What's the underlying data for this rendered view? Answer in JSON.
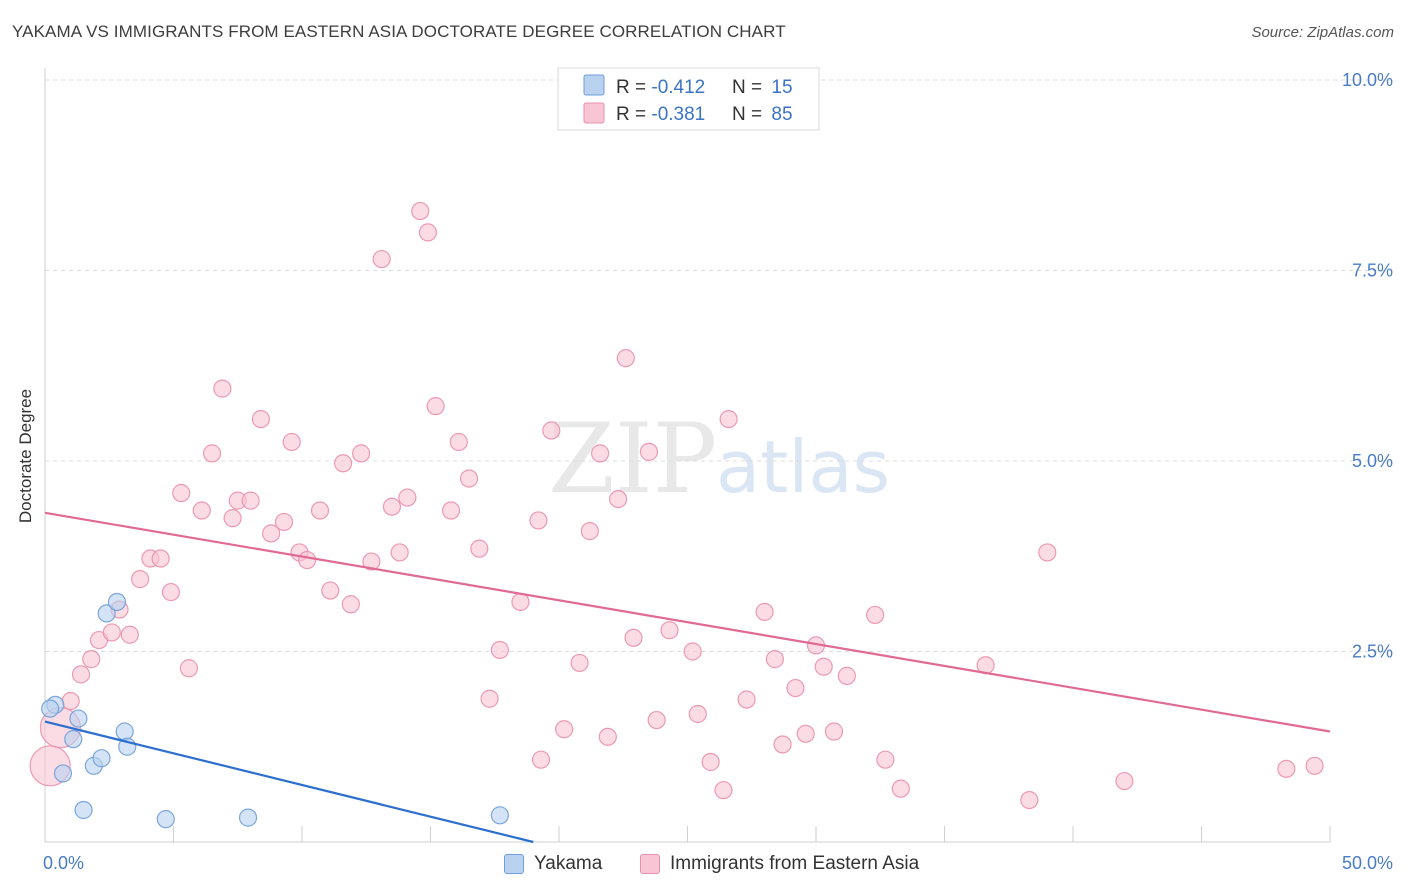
{
  "title": "YAKAMA VS IMMIGRANTS FROM EASTERN ASIA DOCTORATE DEGREE CORRELATION CHART",
  "source": "Source: ZipAtlas.com",
  "watermark": {
    "zip": "ZIP",
    "atlas": "atlas"
  },
  "colors": {
    "yakama_fill": "#b8d2f0",
    "yakama_stroke": "#6f9fd8",
    "yakama_line": "#2d6fcf",
    "eastasia_fill": "#f8c5d4",
    "eastasia_stroke": "#ea90ad",
    "eastasia_line": "#e06a93",
    "value_text": "#3b73c6",
    "grid": "#dcdcdc"
  },
  "legend": {
    "rows": [
      {
        "r_label": "R = ",
        "r_value": "-0.412",
        "n_label": "N = ",
        "n_value": "15"
      },
      {
        "r_label": "R = ",
        "r_value": "-0.381",
        "n_label": "N = ",
        "n_value": "85"
      }
    ]
  },
  "bottom_legend": {
    "yakama": "Yakama",
    "eastasia": "Immigrants from Eastern Asia"
  },
  "chart_data": {
    "type": "scatter",
    "title": "YAKAMA VS IMMIGRANTS FROM EASTERN ASIA DOCTORATE DEGREE CORRELATION CHART",
    "xlabel": "",
    "ylabel": "Doctorate Degree",
    "xlim": [
      0,
      50
    ],
    "ylim": [
      0,
      10
    ],
    "x_tick_labels": [
      "0.0%",
      "50.0%"
    ],
    "y_ticks": [
      2.5,
      5.0,
      7.5,
      10.0
    ],
    "y_tick_labels": [
      "2.5%",
      "5.0%",
      "7.5%",
      "10.0%"
    ],
    "grid": true,
    "legend_position": "top-center",
    "series": [
      {
        "name": "Yakama",
        "r": -0.412,
        "n": 15,
        "trend": {
          "x": [
            0,
            19
          ],
          "y": [
            1.58,
            0.0
          ]
        },
        "points": [
          {
            "x": 0.4,
            "y": 1.8
          },
          {
            "x": 0.7,
            "y": 0.9
          },
          {
            "x": 1.1,
            "y": 1.35
          },
          {
            "x": 1.3,
            "y": 1.62
          },
          {
            "x": 1.5,
            "y": 0.42
          },
          {
            "x": 1.9,
            "y": 1.0
          },
          {
            "x": 2.2,
            "y": 1.1
          },
          {
            "x": 2.4,
            "y": 3.0
          },
          {
            "x": 2.8,
            "y": 3.15
          },
          {
            "x": 3.1,
            "y": 1.45
          },
          {
            "x": 3.2,
            "y": 1.25
          },
          {
            "x": 4.7,
            "y": 0.3
          },
          {
            "x": 7.9,
            "y": 0.32
          },
          {
            "x": 17.7,
            "y": 0.35
          },
          {
            "x": 0.2,
            "y": 1.75
          }
        ]
      },
      {
        "name": "Immigrants from Eastern Asia",
        "r": -0.381,
        "n": 85,
        "trend": {
          "x": [
            0,
            50
          ],
          "y": [
            4.32,
            1.45
          ]
        },
        "points": [
          {
            "x": 0.2,
            "y": 1.0,
            "big": true
          },
          {
            "x": 0.6,
            "y": 1.5,
            "big": true
          },
          {
            "x": 1.0,
            "y": 1.85
          },
          {
            "x": 1.4,
            "y": 2.2
          },
          {
            "x": 1.8,
            "y": 2.4
          },
          {
            "x": 2.1,
            "y": 2.65
          },
          {
            "x": 2.6,
            "y": 2.75
          },
          {
            "x": 2.9,
            "y": 3.05
          },
          {
            "x": 3.3,
            "y": 2.72
          },
          {
            "x": 3.7,
            "y": 3.45
          },
          {
            "x": 4.1,
            "y": 3.72
          },
          {
            "x": 4.5,
            "y": 3.72
          },
          {
            "x": 4.9,
            "y": 3.28
          },
          {
            "x": 5.3,
            "y": 4.58
          },
          {
            "x": 5.6,
            "y": 2.28
          },
          {
            "x": 6.1,
            "y": 4.35
          },
          {
            "x": 6.5,
            "y": 5.1
          },
          {
            "x": 6.9,
            "y": 5.95
          },
          {
            "x": 7.3,
            "y": 4.25
          },
          {
            "x": 7.5,
            "y": 4.48
          },
          {
            "x": 8.0,
            "y": 4.48
          },
          {
            "x": 8.4,
            "y": 5.55
          },
          {
            "x": 8.8,
            "y": 4.05
          },
          {
            "x": 9.3,
            "y": 4.2
          },
          {
            "x": 9.6,
            "y": 5.25
          },
          {
            "x": 9.9,
            "y": 3.8
          },
          {
            "x": 10.2,
            "y": 3.7
          },
          {
            "x": 10.7,
            "y": 4.35
          },
          {
            "x": 11.1,
            "y": 3.3
          },
          {
            "x": 11.6,
            "y": 4.97
          },
          {
            "x": 11.9,
            "y": 3.12
          },
          {
            "x": 12.3,
            "y": 5.1
          },
          {
            "x": 12.7,
            "y": 3.68
          },
          {
            "x": 13.1,
            "y": 7.65
          },
          {
            "x": 13.5,
            "y": 4.4
          },
          {
            "x": 13.8,
            "y": 3.8
          },
          {
            "x": 14.1,
            "y": 4.52
          },
          {
            "x": 14.6,
            "y": 8.28
          },
          {
            "x": 14.9,
            "y": 8.0
          },
          {
            "x": 15.2,
            "y": 5.72
          },
          {
            "x": 15.8,
            "y": 4.35
          },
          {
            "x": 16.1,
            "y": 5.25
          },
          {
            "x": 16.5,
            "y": 4.77
          },
          {
            "x": 16.9,
            "y": 3.85
          },
          {
            "x": 17.3,
            "y": 1.88
          },
          {
            "x": 17.7,
            "y": 2.52
          },
          {
            "x": 18.5,
            "y": 3.15
          },
          {
            "x": 19.2,
            "y": 4.22
          },
          {
            "x": 19.3,
            "y": 1.08
          },
          {
            "x": 19.7,
            "y": 5.4
          },
          {
            "x": 20.2,
            "y": 1.48
          },
          {
            "x": 20.8,
            "y": 2.35
          },
          {
            "x": 21.2,
            "y": 4.08
          },
          {
            "x": 21.6,
            "y": 5.1
          },
          {
            "x": 21.9,
            "y": 1.38
          },
          {
            "x": 22.3,
            "y": 4.5
          },
          {
            "x": 22.6,
            "y": 6.35
          },
          {
            "x": 22.9,
            "y": 2.68
          },
          {
            "x": 23.5,
            "y": 5.12
          },
          {
            "x": 23.8,
            "y": 1.6
          },
          {
            "x": 24.3,
            "y": 2.78
          },
          {
            "x": 25.2,
            "y": 2.5
          },
          {
            "x": 25.4,
            "y": 1.68
          },
          {
            "x": 25.9,
            "y": 1.05
          },
          {
            "x": 26.4,
            "y": 0.68
          },
          {
            "x": 26.6,
            "y": 5.55
          },
          {
            "x": 27.3,
            "y": 1.87
          },
          {
            "x": 28.0,
            "y": 3.02
          },
          {
            "x": 28.4,
            "y": 2.4
          },
          {
            "x": 28.7,
            "y": 1.28
          },
          {
            "x": 29.2,
            "y": 2.02
          },
          {
            "x": 29.6,
            "y": 1.42
          },
          {
            "x": 30.0,
            "y": 2.58
          },
          {
            "x": 30.3,
            "y": 2.3
          },
          {
            "x": 30.7,
            "y": 1.45
          },
          {
            "x": 31.2,
            "y": 2.18
          },
          {
            "x": 32.3,
            "y": 2.98
          },
          {
            "x": 32.7,
            "y": 1.08
          },
          {
            "x": 33.3,
            "y": 0.7
          },
          {
            "x": 36.6,
            "y": 2.32
          },
          {
            "x": 38.3,
            "y": 0.55
          },
          {
            "x": 39.0,
            "y": 3.8
          },
          {
            "x": 42.0,
            "y": 0.8
          },
          {
            "x": 48.3,
            "y": 0.96
          },
          {
            "x": 49.4,
            "y": 1.0
          }
        ]
      }
    ]
  }
}
